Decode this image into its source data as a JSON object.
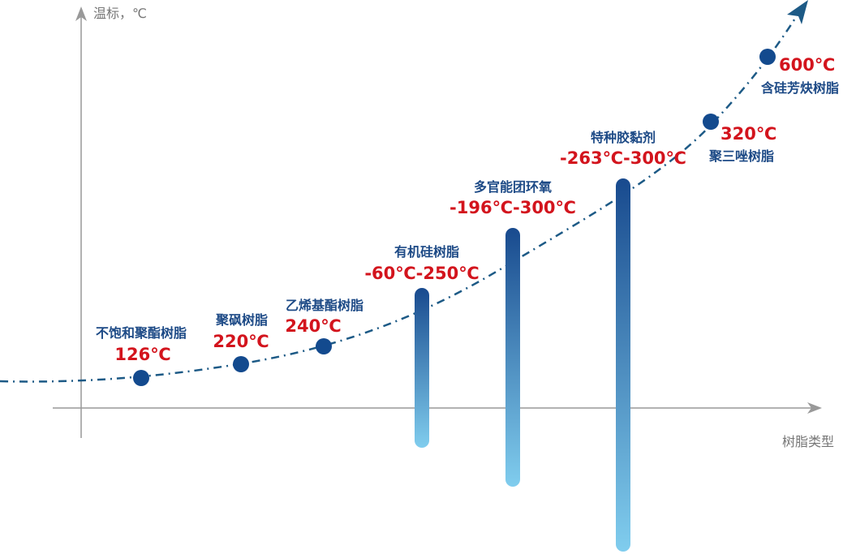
{
  "axes": {
    "y_label": "温标，℃",
    "x_label": "树脂类型"
  },
  "points": [
    {
      "name": "不饱和聚酯树脂",
      "temp": "126℃"
    },
    {
      "name": "聚砜树脂",
      "temp": "220℃"
    },
    {
      "name": "乙烯基酯树脂",
      "temp": "240℃"
    },
    {
      "name": "聚三唑树脂",
      "temp": "320℃"
    },
    {
      "name": "含硅芳炔树脂",
      "temp": "600℃"
    }
  ],
  "ranges": [
    {
      "name": "有机硅树脂",
      "temp": "-60℃-250℃"
    },
    {
      "name": "多官能团环氧",
      "temp": "-196℃-300℃"
    },
    {
      "name": "特种胶黏剂",
      "temp": "-263℃-300℃"
    }
  ]
}
